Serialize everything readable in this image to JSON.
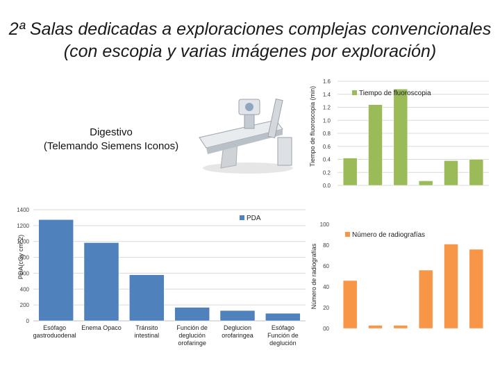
{
  "page": {
    "title_line1": "2ª Salas dedicadas a exploraciones complejas convencionales",
    "title_line2": "(con escopia y varias imágenes por exploración)",
    "room_line1": "Digestivo",
    "room_line2": "(Telemando Siemens Iconos)"
  },
  "colors": {
    "fluoro": "#9bbb59",
    "pda": "#4f81bd",
    "radiographs": "#f79646",
    "grid": "#d9d9d9",
    "axis_text": "#404040"
  },
  "chart_data": [
    {
      "id": "fluoro",
      "type": "bar",
      "ylabel": "Tiempo de fluoroscopia (min)",
      "ylim": [
        0,
        1.6
      ],
      "yticks": [
        "0.0",
        "0.2",
        "0.4",
        "0.6",
        "0.8",
        "1.0",
        "1.2",
        "1.4",
        "1.6"
      ],
      "legend": "Tiempo de fluoroscopia",
      "legend_position": "top",
      "values": [
        0.42,
        1.24,
        1.48,
        0.07,
        0.38,
        0.4
      ]
    },
    {
      "id": "pda",
      "type": "bar",
      "ylabel": "PDA(cGy cm^2)",
      "ylim": [
        0,
        1400
      ],
      "yticks": [
        "0",
        "200",
        "400",
        "600",
        "800",
        "1000",
        "1200",
        "1400"
      ],
      "legend": "PDA",
      "legend_position": "top-right",
      "categories": [
        [
          "Esófago",
          "gastroduodenal"
        ],
        [
          "Enema Opaco"
        ],
        [
          "Tránsito",
          "intestinal"
        ],
        [
          "Función de",
          "deglución",
          "orofaringe"
        ],
        [
          "Deglucion",
          "orofaringea"
        ],
        [
          "Esófago",
          "Función de",
          "deglución"
        ]
      ],
      "values": [
        1275,
        985,
        580,
        170,
        130,
        95
      ]
    },
    {
      "id": "radiographs",
      "type": "bar",
      "ylabel": "Número de radiografías",
      "ylim": [
        0,
        100
      ],
      "yticks": [
        "00",
        "20",
        "40",
        "60",
        "80",
        "100"
      ],
      "legend": "Número de radiografías",
      "legend_position": "top",
      "values": [
        46,
        3,
        3,
        56,
        81,
        76
      ]
    }
  ]
}
